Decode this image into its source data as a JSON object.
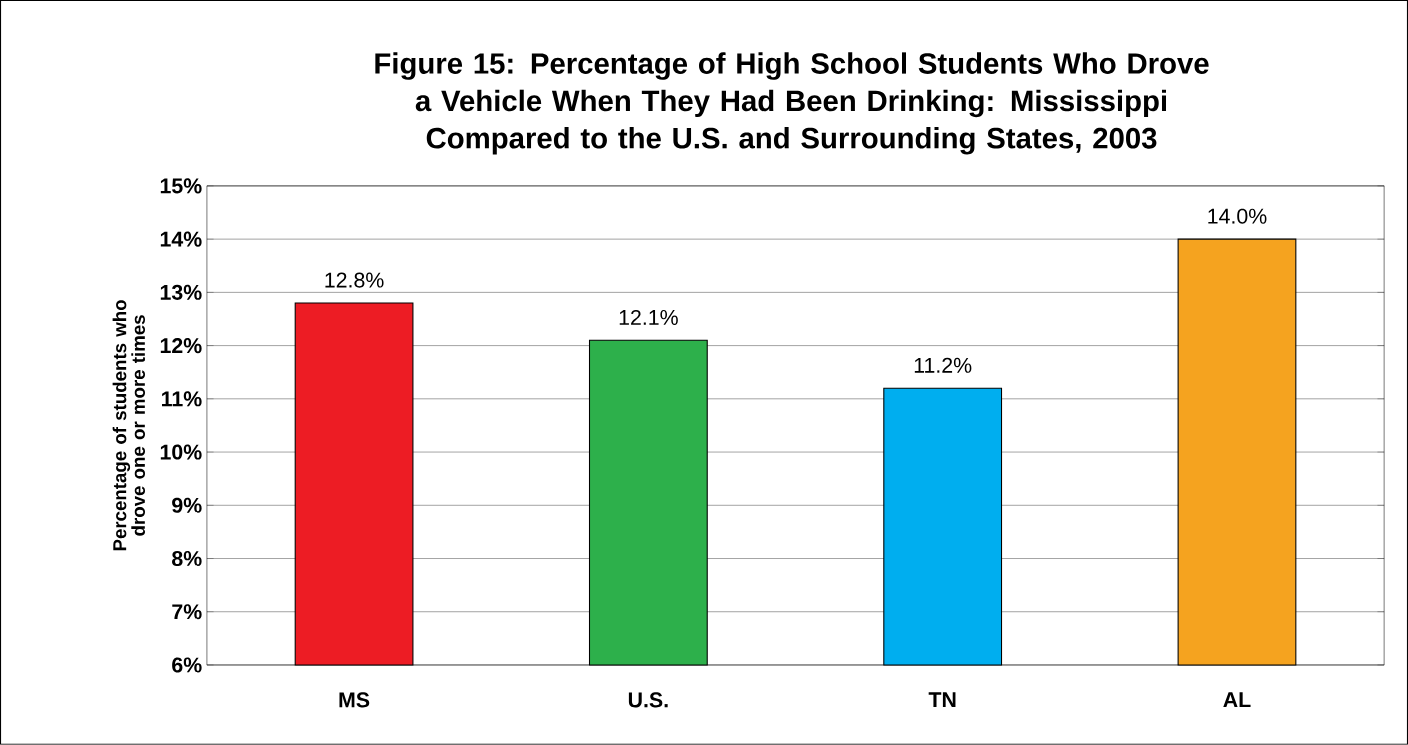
{
  "chart_data": {
    "type": "bar",
    "title": "Figure 15: Percentage of High School Students Who Drove a Vehicle When They Had Been Drinking: Mississippi Compared to the U.S. and Surrounding States, 2003",
    "ylabel": "Percentage of students who drove one or more times",
    "categories": [
      "MS",
      "U.S.",
      "TN",
      "AL"
    ],
    "values": [
      12.8,
      12.1,
      11.2,
      14.0
    ],
    "colors": [
      "#ed1c24",
      "#2db04b",
      "#00aeef",
      "#f5a31f"
    ],
    "value_labels": [
      "12.8%",
      "12.1%",
      "11.2%",
      "14.0%"
    ],
    "ylim": [
      6,
      15
    ],
    "yticks": [
      {
        "value": 6,
        "label": "6%"
      },
      {
        "value": 7,
        "label": "7%"
      },
      {
        "value": 8,
        "label": "8%"
      },
      {
        "value": 9,
        "label": "9%"
      },
      {
        "value": 10,
        "label": "10%"
      },
      {
        "value": 11,
        "label": "11%"
      },
      {
        "value": 12,
        "label": "12%"
      },
      {
        "value": 13,
        "label": "13%"
      },
      {
        "value": 14,
        "label": "14%"
      },
      {
        "value": 15,
        "label": "15%"
      }
    ],
    "grid": "y"
  }
}
